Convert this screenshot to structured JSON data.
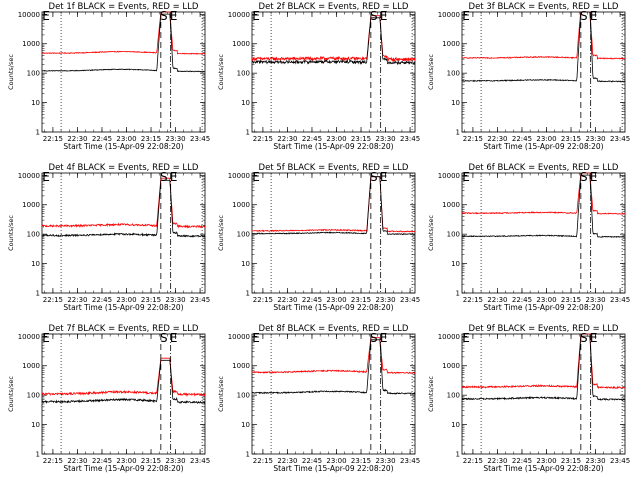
{
  "chart_data": {
    "type": "line",
    "layout": "3x3 grid",
    "xlabel": "Start Time (15-Apr-09 22:08:20)",
    "ylabel": "Counts/sec",
    "x_tick_labels": [
      "22:15",
      "22:30",
      "22:45",
      "23:00",
      "23:15",
      "23:30",
      "23:45"
    ],
    "x_range": [
      "22:08:20",
      "23:48:00"
    ],
    "y_scale": "log",
    "y_tick_labels": [
      "1",
      "10",
      "100",
      "1000",
      "10000"
    ],
    "ylim": [
      1,
      12000
    ],
    "series_colors": {
      "Events": "#000000",
      "LLD": "#ff0000"
    },
    "markers": [
      {
        "label": "S",
        "time": "23:21"
      },
      {
        "label": "E",
        "time": "23:27"
      }
    ],
    "start_marker_time": "22:20",
    "panels": [
      {
        "title": "Det 1f BLACK = Events, RED = LLD",
        "events_base": 120,
        "lld_base": 480,
        "noise": 0.03,
        "peak": 12000,
        "drift": 0.15,
        "drift_peak": "22:58",
        "marker_labels": [
          "S",
          "E"
        ]
      },
      {
        "title": "Det 2f BLACK = Events, RED = LLD",
        "events_base": 240,
        "lld_base": 310,
        "noise": 0.12,
        "peak": 9000,
        "drift": 0.05,
        "drift_peak": "22:58",
        "marker_labels": [
          "S",
          "E"
        ]
      },
      {
        "title": "Det 3f BLACK = Events, RED = LLD",
        "events_base": 55,
        "lld_base": 330,
        "noise": 0.04,
        "peak": 15000,
        "drift": 0.1,
        "drift_peak": "22:58",
        "marker_labels": [
          "S",
          "E"
        ]
      },
      {
        "title": "Det 4f BLACK = Events, RED = LLD",
        "events_base": 90,
        "lld_base": 190,
        "noise": 0.07,
        "peak": 8000,
        "drift": 0.14,
        "drift_peak": "22:58",
        "marker_labels": [
          "S",
          "E"
        ]
      },
      {
        "title": "Det 5f BLACK = Events, RED = LLD",
        "events_base": 105,
        "lld_base": 130,
        "noise": 0.04,
        "peak": 9000,
        "drift": 0.1,
        "drift_peak": "22:58",
        "marker_labels": [
          "S",
          "E"
        ]
      },
      {
        "title": "Det 6f BLACK = Events, RED = LLD",
        "events_base": 85,
        "lld_base": 520,
        "noise": 0.04,
        "peak": 12000,
        "drift": 0.08,
        "drift_peak": "22:58",
        "marker_labels": [
          "S",
          "E"
        ]
      },
      {
        "title": "Det 7f BLACK = Events, RED = LLD",
        "events_base": 60,
        "lld_base": 110,
        "noise": 0.08,
        "peak": 1800,
        "drift": 0.2,
        "drift_peak": "22:58",
        "marker_labels": [
          "S",
          "E"
        ]
      },
      {
        "title": "Det 8f BLACK = Events, RED = LLD",
        "events_base": 120,
        "lld_base": 600,
        "noise": 0.05,
        "peak": 9000,
        "drift": 0.15,
        "drift_peak": "22:58",
        "marker_labels": [
          "S",
          "E"
        ]
      },
      {
        "title": "Det 9f BLACK = Events, RED = LLD",
        "events_base": 75,
        "lld_base": 190,
        "noise": 0.06,
        "peak": 12000,
        "drift": 0.12,
        "drift_peak": "22:58",
        "marker_labels": [
          "S",
          "E"
        ]
      }
    ]
  }
}
